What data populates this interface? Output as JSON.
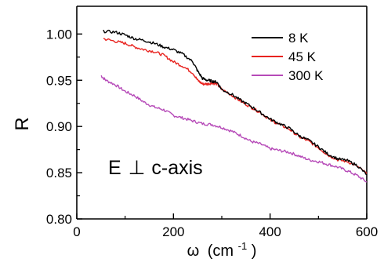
{
  "chart_data": {
    "type": "line",
    "xlabel_symbol": "ω",
    "xlabel_unit_base": "(cm",
    "xlabel_unit_exp": "-1",
    "xlabel_unit_close": ")",
    "ylabel": "R",
    "xlim": [
      0,
      600
    ],
    "ylim": [
      0.8,
      1.03
    ],
    "x_ticks": [
      0,
      200,
      400,
      600
    ],
    "x_tick_labels": [
      "0",
      "200",
      "400",
      "600"
    ],
    "y_ticks": [
      0.8,
      0.85,
      0.9,
      0.95,
      1.0
    ],
    "y_tick_labels": [
      "0.80",
      "0.85",
      "0.90",
      "0.95",
      "1.00"
    ],
    "grid": false,
    "legend_position": "top-right",
    "annotation": {
      "prefix": "E",
      "symbol": "⊥",
      "suffix": "c-axis"
    },
    "series": [
      {
        "name": "8 K",
        "color": "#000000",
        "x": [
          55,
          80,
          100,
          120,
          140,
          160,
          180,
          200,
          220,
          240,
          250,
          260,
          270,
          280,
          290,
          300,
          320,
          340,
          360,
          380,
          400,
          420,
          440,
          460,
          480,
          500,
          520,
          540,
          560,
          580,
          600
        ],
        "y": [
          1.003,
          1.002,
          0.999,
          0.995,
          0.993,
          0.99,
          0.986,
          0.983,
          0.978,
          0.97,
          0.96,
          0.952,
          0.95,
          0.949,
          0.948,
          0.94,
          0.935,
          0.928,
          0.922,
          0.915,
          0.908,
          0.903,
          0.898,
          0.89,
          0.885,
          0.878,
          0.87,
          0.865,
          0.863,
          0.858,
          0.848
        ]
      },
      {
        "name": "45 K",
        "color": "#e8231f",
        "x": [
          55,
          80,
          100,
          120,
          140,
          160,
          180,
          200,
          220,
          240,
          250,
          260,
          270,
          280,
          290,
          300,
          320,
          340,
          360,
          380,
          400,
          420,
          440,
          460,
          480,
          500,
          520,
          540,
          560,
          580,
          600
        ],
        "y": [
          0.995,
          0.992,
          0.99,
          0.986,
          0.983,
          0.981,
          0.977,
          0.97,
          0.965,
          0.958,
          0.95,
          0.946,
          0.946,
          0.947,
          0.946,
          0.94,
          0.934,
          0.927,
          0.921,
          0.915,
          0.907,
          0.902,
          0.897,
          0.889,
          0.884,
          0.877,
          0.869,
          0.864,
          0.862,
          0.857,
          0.849
        ]
      },
      {
        "name": "300 K",
        "color": "#b64ab8",
        "x": [
          50,
          60,
          80,
          100,
          120,
          140,
          160,
          180,
          200,
          220,
          240,
          260,
          280,
          300,
          320,
          340,
          360,
          380,
          400,
          420,
          440,
          460,
          480,
          500,
          520,
          540,
          560,
          580,
          600
        ],
        "y": [
          0.955,
          0.95,
          0.945,
          0.938,
          0.933,
          0.926,
          0.921,
          0.918,
          0.912,
          0.909,
          0.906,
          0.903,
          0.902,
          0.899,
          0.895,
          0.89,
          0.884,
          0.881,
          0.876,
          0.874,
          0.872,
          0.868,
          0.864,
          0.862,
          0.859,
          0.856,
          0.852,
          0.847,
          0.84
        ]
      }
    ]
  }
}
